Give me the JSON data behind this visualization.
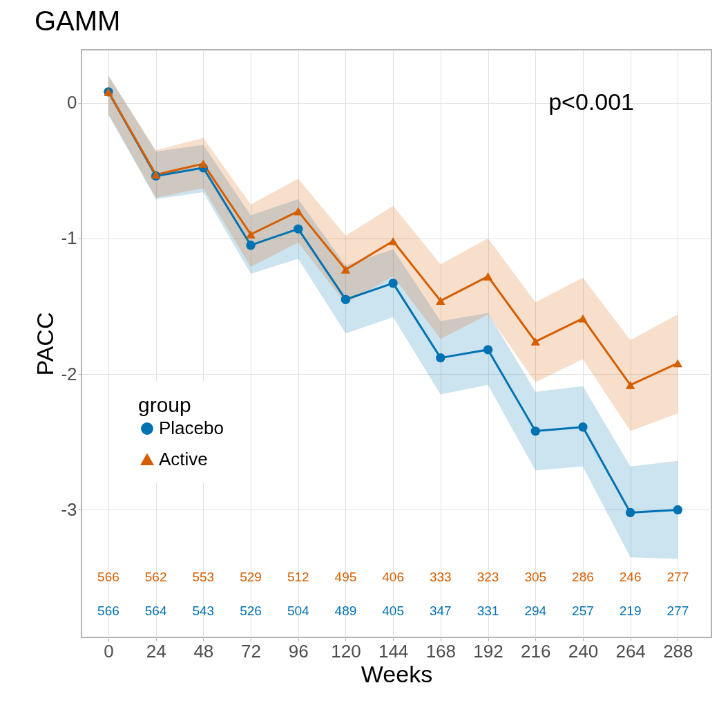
{
  "chart_data": {
    "type": "line",
    "title": "GAMM",
    "xlabel": "Weeks",
    "ylabel": "PACC",
    "legend_title": "group",
    "legend": "bottom left",
    "grid": true,
    "x": [
      0,
      24,
      48,
      72,
      96,
      120,
      144,
      168,
      192,
      216,
      240,
      264,
      288
    ],
    "xlim": [
      -13.6,
      305
    ],
    "xticks": [
      0,
      24,
      48,
      72,
      96,
      120,
      144,
      168,
      192,
      216,
      240,
      264,
      288
    ],
    "ylim": [
      -3.94,
      0.39
    ],
    "yticks": [
      -3,
      -2,
      -1,
      0
    ],
    "series": [
      {
        "name": "Placebo",
        "color": "#0072b2",
        "marker": "circle",
        "values": [
          0.08,
          -0.54,
          -0.48,
          -1.05,
          -0.93,
          -1.45,
          -1.33,
          -1.88,
          -1.82,
          -2.42,
          -2.39,
          -3.02,
          -3.0
        ],
        "lower": [
          -0.09,
          -0.71,
          -0.66,
          -1.26,
          -1.15,
          -1.7,
          -1.58,
          -2.15,
          -2.08,
          -2.71,
          -2.68,
          -3.35,
          -3.36
        ],
        "upper": [
          0.2,
          -0.36,
          -0.31,
          -0.83,
          -0.71,
          -1.2,
          -1.08,
          -1.61,
          -1.55,
          -2.13,
          -2.09,
          -2.68,
          -2.64
        ]
      },
      {
        "name": "Active",
        "color": "#d55e00",
        "marker": "triangle",
        "values": [
          0.08,
          -0.53,
          -0.45,
          -0.97,
          -0.8,
          -1.23,
          -1.02,
          -1.46,
          -1.28,
          -1.76,
          -1.59,
          -2.08,
          -1.92
        ],
        "lower": [
          -0.08,
          -0.7,
          -0.63,
          -1.21,
          -1.03,
          -1.48,
          -1.28,
          -1.74,
          -1.56,
          -2.06,
          -1.89,
          -2.42,
          -2.29
        ],
        "upper": [
          0.2,
          -0.35,
          -0.26,
          -0.75,
          -0.56,
          -0.98,
          -0.76,
          -1.19,
          -1.0,
          -1.47,
          -1.29,
          -1.75,
          -1.56
        ]
      }
    ],
    "annotations": [
      "p<0.001",
      "566",
      "562",
      "553",
      "529",
      "512",
      "495",
      "406",
      "333",
      "323",
      "305",
      "286",
      "246",
      "277",
      "566",
      "564",
      "543",
      "526",
      "504",
      "489",
      "405",
      "347",
      "331",
      "294",
      "257",
      "219",
      "277"
    ]
  }
}
